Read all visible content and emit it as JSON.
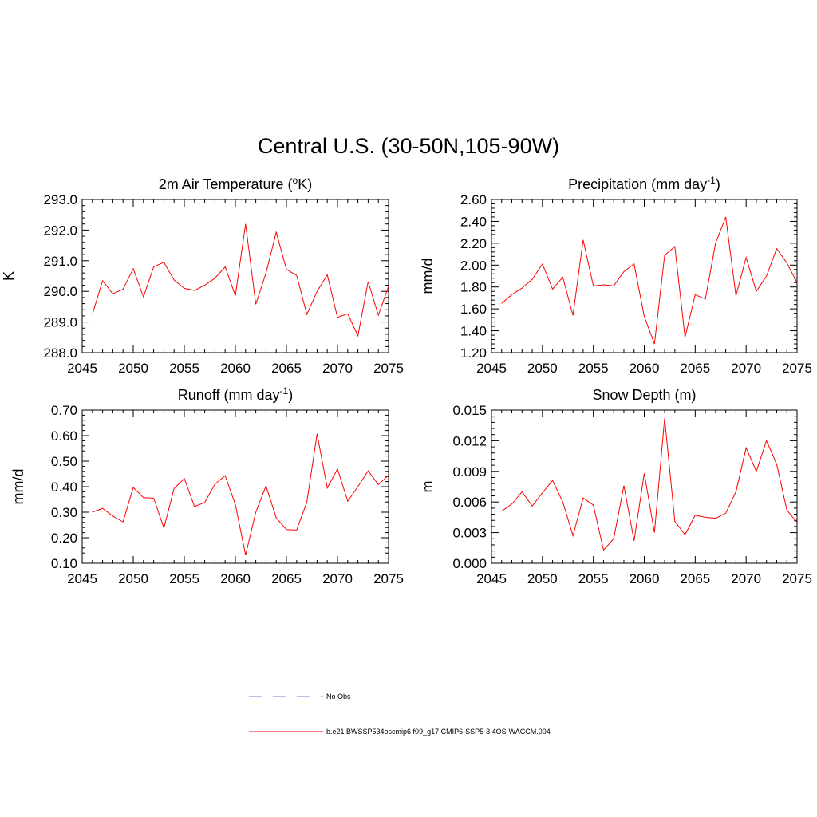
{
  "title": "Central U.S. (30-50N,105-90W)",
  "colors": {
    "model": "#ff0000",
    "obs": "#9999dd",
    "axis": "#000000"
  },
  "legend": {
    "obs_label": "No Obs",
    "model_label": "b.e21.BWSSP534oscmip6.f09_g17.CMIP6-SSP5-3.4OS-WACCM.004"
  },
  "chart_data": [
    {
      "type": "line",
      "title": "2m Air Temperature (",
      "title_sup": "o",
      "title_after": "K)",
      "ylabel": "K",
      "xlim": [
        2045,
        2075
      ],
      "ylim": [
        288.0,
        293.0
      ],
      "x_ticks": [
        2045,
        2050,
        2055,
        2060,
        2065,
        2070,
        2075
      ],
      "x_tick_labels": [
        "2045",
        "2050",
        "2055",
        "2060",
        "2065",
        "2070",
        "2075"
      ],
      "y_ticks": [
        288.0,
        289.0,
        290.0,
        291.0,
        292.0,
        293.0
      ],
      "y_tick_labels": [
        "288.0",
        "289.0",
        "290.0",
        "291.0",
        "292.0",
        "293.0"
      ],
      "x": [
        2046,
        2047,
        2048,
        2049,
        2050,
        2051,
        2052,
        2053,
        2054,
        2055,
        2056,
        2057,
        2058,
        2059,
        2060,
        2061,
        2062,
        2063,
        2064,
        2065,
        2066,
        2067,
        2068,
        2069,
        2070,
        2071,
        2072,
        2073,
        2074,
        2075
      ],
      "values": [
        289.25,
        290.35,
        289.92,
        290.07,
        290.74,
        289.82,
        290.8,
        290.95,
        290.37,
        290.1,
        290.03,
        290.2,
        290.43,
        290.8,
        289.86,
        292.2,
        289.58,
        290.6,
        291.93,
        290.72,
        290.52,
        289.25,
        290.0,
        290.54,
        289.15,
        289.27,
        288.55,
        290.32,
        289.22,
        290.17
      ]
    },
    {
      "type": "line",
      "title": "Precipitation (mm day",
      "title_sup": "-1",
      "title_after": ")",
      "ylabel": "mm/d",
      "xlim": [
        2045,
        2075
      ],
      "ylim": [
        1.2,
        2.6
      ],
      "x_ticks": [
        2045,
        2050,
        2055,
        2060,
        2065,
        2070,
        2075
      ],
      "x_tick_labels": [
        "2045",
        "2050",
        "2055",
        "2060",
        "2065",
        "2070",
        "2075"
      ],
      "y_ticks": [
        1.2,
        1.4,
        1.6,
        1.8,
        2.0,
        2.2,
        2.4,
        2.6
      ],
      "y_tick_labels": [
        "1.20",
        "1.40",
        "1.60",
        "1.80",
        "2.00",
        "2.20",
        "2.40",
        "2.60"
      ],
      "x": [
        2046,
        2047,
        2048,
        2049,
        2050,
        2051,
        2052,
        2053,
        2054,
        2055,
        2056,
        2057,
        2058,
        2059,
        2060,
        2061,
        2062,
        2063,
        2064,
        2065,
        2066,
        2067,
        2068,
        2069,
        2070,
        2071,
        2072,
        2073,
        2074,
        2075
      ],
      "values": [
        1.65,
        1.73,
        1.79,
        1.87,
        2.01,
        1.78,
        1.89,
        1.54,
        2.23,
        1.81,
        1.82,
        1.81,
        1.94,
        2.01,
        1.53,
        1.28,
        2.09,
        2.17,
        1.34,
        1.73,
        1.69,
        2.2,
        2.44,
        1.72,
        2.07,
        1.76,
        1.9,
        2.15,
        2.02,
        1.84
      ]
    },
    {
      "type": "line",
      "title": "Runoff (mm day",
      "title_sup": "-1",
      "title_after": ")",
      "ylabel": "mm/d",
      "xlim": [
        2045,
        2075
      ],
      "ylim": [
        0.1,
        0.7
      ],
      "x_ticks": [
        2045,
        2050,
        2055,
        2060,
        2065,
        2070,
        2075
      ],
      "x_tick_labels": [
        "2045",
        "2050",
        "2055",
        "2060",
        "2065",
        "2070",
        "2075"
      ],
      "y_ticks": [
        0.1,
        0.2,
        0.3,
        0.4,
        0.5,
        0.6,
        0.7
      ],
      "y_tick_labels": [
        "0.10",
        "0.20",
        "0.30",
        "0.40",
        "0.50",
        "0.60",
        "0.70"
      ],
      "x": [
        2046,
        2047,
        2048,
        2049,
        2050,
        2051,
        2052,
        2053,
        2054,
        2055,
        2056,
        2057,
        2058,
        2059,
        2060,
        2061,
        2062,
        2063,
        2064,
        2065,
        2066,
        2067,
        2068,
        2069,
        2070,
        2071,
        2072,
        2073,
        2074,
        2075
      ],
      "values": [
        0.3,
        0.315,
        0.285,
        0.262,
        0.397,
        0.357,
        0.355,
        0.238,
        0.393,
        0.432,
        0.322,
        0.338,
        0.41,
        0.443,
        0.33,
        0.132,
        0.3,
        0.403,
        0.278,
        0.232,
        0.23,
        0.34,
        0.607,
        0.395,
        0.47,
        0.343,
        0.4,
        0.462,
        0.408,
        0.445
      ]
    },
    {
      "type": "line",
      "title": "Snow Depth (m)",
      "title_sup": "",
      "title_after": "",
      "ylabel": "m",
      "xlim": [
        2045,
        2075
      ],
      "ylim": [
        0.0,
        0.015
      ],
      "x_ticks": [
        2045,
        2050,
        2055,
        2060,
        2065,
        2070,
        2075
      ],
      "x_tick_labels": [
        "2045",
        "2050",
        "2055",
        "2060",
        "2065",
        "2070",
        "2075"
      ],
      "y_ticks": [
        0.0,
        0.003,
        0.006,
        0.009,
        0.012,
        0.015
      ],
      "y_tick_labels": [
        "0.000",
        "0.003",
        "0.006",
        "0.009",
        "0.012",
        "0.015"
      ],
      "x": [
        2046,
        2047,
        2048,
        2049,
        2050,
        2051,
        2052,
        2053,
        2054,
        2055,
        2056,
        2057,
        2058,
        2059,
        2060,
        2061,
        2062,
        2063,
        2064,
        2065,
        2066,
        2067,
        2068,
        2069,
        2070,
        2071,
        2072,
        2073,
        2074,
        2075
      ],
      "values": [
        0.0051,
        0.0058,
        0.007,
        0.0056,
        0.0069,
        0.0081,
        0.006,
        0.0027,
        0.0064,
        0.0057,
        0.0013,
        0.0024,
        0.0076,
        0.0022,
        0.0088,
        0.003,
        0.0142,
        0.0041,
        0.0028,
        0.0047,
        0.0045,
        0.0044,
        0.0049,
        0.007,
        0.0113,
        0.009,
        0.012,
        0.0097,
        0.0052,
        0.004
      ]
    }
  ]
}
